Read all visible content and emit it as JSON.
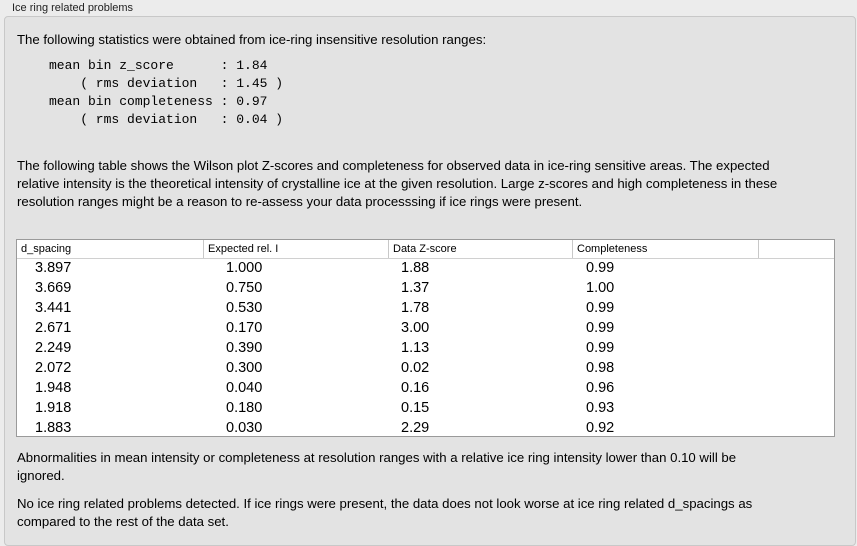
{
  "group_title": "Ice ring related problems",
  "intro": "The following statistics were obtained from ice-ring insensitive resolution ranges:",
  "stats": [
    "mean bin z_score      : 1.84",
    "    ( rms deviation   : 1.45 )",
    "mean bin completeness : 0.97",
    "    ( rms deviation   : 0.04 )"
  ],
  "table_description": "The following table shows the Wilson plot Z-scores and completeness for observed data in ice-ring sensitive areas. The expected relative intensity is the theoretical intensity of crystalline ice at the given resolution. Large z-scores and high completeness in these resolution ranges might be a reason to re-assess your data processsing if ice rings were present.",
  "table": {
    "columns": [
      "d_spacing",
      "Expected rel. I",
      "Data Z-score",
      "Completeness"
    ],
    "rows": [
      [
        "3.897",
        "1.000",
        "1.88",
        "0.99"
      ],
      [
        "3.669",
        "0.750",
        "1.37",
        "1.00"
      ],
      [
        "3.441",
        "0.530",
        "1.78",
        "0.99"
      ],
      [
        "2.671",
        "0.170",
        "3.00",
        "0.99"
      ],
      [
        "2.249",
        "0.390",
        "1.13",
        "0.99"
      ],
      [
        "2.072",
        "0.300",
        "0.02",
        "0.98"
      ],
      [
        "1.948",
        "0.040",
        "0.16",
        "0.96"
      ],
      [
        "1.918",
        "0.180",
        "0.15",
        "0.93"
      ],
      [
        "1.883",
        "0.030",
        "2.29",
        "0.92"
      ]
    ]
  },
  "note": "Abnormalities in mean intensity or completeness at resolution ranges with a relative ice ring intensity lower than 0.10 will be ignored.",
  "conclusion": "No ice ring related problems detected. If ice rings were present, the data does not look worse at ice ring related d_spacings as compared to the rest of the data set."
}
